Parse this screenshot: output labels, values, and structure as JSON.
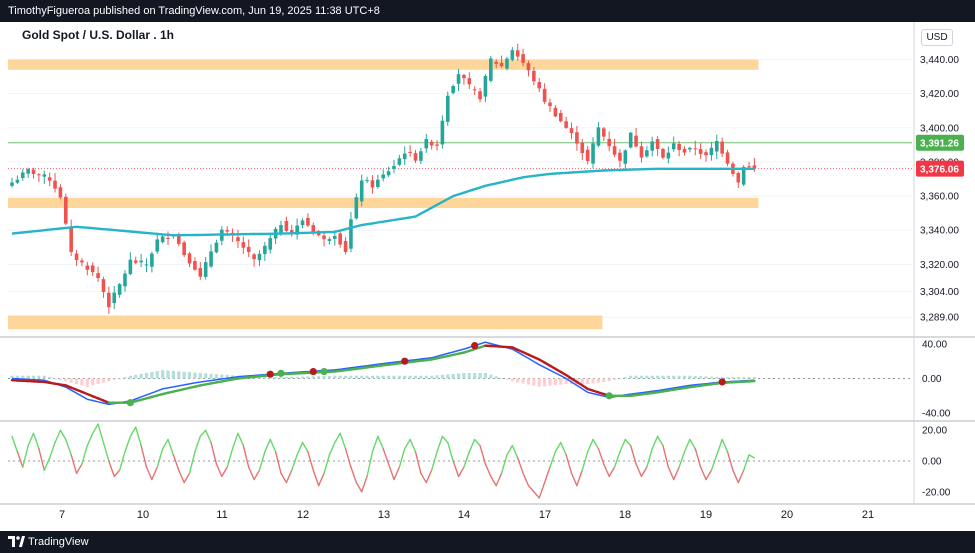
{
  "header": {
    "publish_line": "TimothyFigueroa published on TradingView.com, Jun 19, 2025 11:38 UTC+8"
  },
  "footer": {
    "brand": "TradingView"
  },
  "chart_title": "Gold Spot / U.S. Dollar . 1h",
  "currency_label": "USD",
  "colors": {
    "bull": "#26a69a",
    "bear": "#ef5350",
    "ema": "#26b5c6",
    "zone": "#ffd699",
    "macd_line": "#2962ff",
    "macd_signal_up": "#4caf50",
    "macd_signal_down": "#b71c1c",
    "osc_up": "#66d86a",
    "osc_down": "#e57373",
    "last_price_bg": "#f23645",
    "green_level_bg": "#4caf50"
  },
  "chart_data": [
    {
      "type": "candlestick",
      "title": "Gold Spot / U.S. Dollar . 1h",
      "ylim": [
        3278,
        3462
      ],
      "x_ticks": [
        "7",
        "10",
        "11",
        "12",
        "13",
        "14",
        "17",
        "18",
        "19",
        "20",
        "21"
      ],
      "y_ticks": [
        "3,440.00",
        "3,420.00",
        "3,400.00",
        "3,380.00",
        "3,360.00",
        "3,340.00",
        "3,320.00",
        "3,304.00",
        "3,289.00"
      ],
      "current_price_label": "3,376.06",
      "current_price": 3376.06,
      "level_label": "3,391.26",
      "level_price": 3391.26,
      "zones": [
        {
          "low": 3434,
          "high": 3440,
          "x_from": 0,
          "x_to": 138
        },
        {
          "low": 3353,
          "high": 3359,
          "x_from": 0,
          "x_to": 138
        },
        {
          "low": 3282,
          "high": 3290,
          "x_from": 0,
          "x_to": 109
        }
      ],
      "close_waypoints": [
        [
          0,
          3368
        ],
        [
          3,
          3375
        ],
        [
          7,
          3370
        ],
        [
          9,
          3360
        ],
        [
          11,
          3326
        ],
        [
          14,
          3318
        ],
        [
          16,
          3312
        ],
        [
          18,
          3296
        ],
        [
          20,
          3308
        ],
        [
          22,
          3322
        ],
        [
          25,
          3320
        ],
        [
          27,
          3334
        ],
        [
          30,
          3338
        ],
        [
          32,
          3326
        ],
        [
          34,
          3318
        ],
        [
          35,
          3312
        ],
        [
          37,
          3328
        ],
        [
          39,
          3340
        ],
        [
          41,
          3336
        ],
        [
          43,
          3330
        ],
        [
          45,
          3322
        ],
        [
          47,
          3330
        ],
        [
          50,
          3344
        ],
        [
          52,
          3338
        ],
        [
          54,
          3346
        ],
        [
          56,
          3340
        ],
        [
          58,
          3334
        ],
        [
          60,
          3338
        ],
        [
          62,
          3328
        ],
        [
          63,
          3346
        ],
        [
          65,
          3370
        ],
        [
          67,
          3366
        ],
        [
          69,
          3372
        ],
        [
          71,
          3378
        ],
        [
          73,
          3386
        ],
        [
          75,
          3382
        ],
        [
          77,
          3392
        ],
        [
          79,
          3390
        ],
        [
          81,
          3420
        ],
        [
          83,
          3432
        ],
        [
          85,
          3424
        ],
        [
          87,
          3418
        ],
        [
          89,
          3440
        ],
        [
          91,
          3436
        ],
        [
          93,
          3446
        ],
        [
          95,
          3438
        ],
        [
          97,
          3428
        ],
        [
          99,
          3416
        ],
        [
          101,
          3408
        ],
        [
          103,
          3400
        ],
        [
          105,
          3392
        ],
        [
          107,
          3380
        ],
        [
          109,
          3400
        ],
        [
          111,
          3390
        ],
        [
          113,
          3380
        ],
        [
          115,
          3396
        ],
        [
          117,
          3384
        ],
        [
          119,
          3392
        ],
        [
          121,
          3382
        ],
        [
          123,
          3390
        ],
        [
          125,
          3386
        ],
        [
          127,
          3388
        ],
        [
          129,
          3383
        ],
        [
          131,
          3392
        ],
        [
          133,
          3380
        ],
        [
          135,
          3368
        ],
        [
          136,
          3378
        ],
        [
          138,
          3376
        ]
      ],
      "ema_waypoints": [
        [
          0,
          3338
        ],
        [
          12,
          3342
        ],
        [
          30,
          3337
        ],
        [
          50,
          3338
        ],
        [
          60,
          3339
        ],
        [
          65,
          3343
        ],
        [
          75,
          3348
        ],
        [
          82,
          3360
        ],
        [
          88,
          3366
        ],
        [
          95,
          3371
        ],
        [
          100,
          3373
        ],
        [
          110,
          3375
        ],
        [
          120,
          3376
        ],
        [
          130,
          3376
        ],
        [
          138,
          3376
        ]
      ]
    },
    {
      "type": "line",
      "name": "macd_panel",
      "ylim": [
        -48,
        48
      ],
      "y_ticks": [
        "40.00",
        "0.00",
        "-40.00"
      ],
      "macd_waypoints": [
        [
          0,
          0
        ],
        [
          6,
          -2
        ],
        [
          10,
          -10
        ],
        [
          14,
          -24
        ],
        [
          18,
          -30
        ],
        [
          22,
          -26
        ],
        [
          28,
          -12
        ],
        [
          35,
          -4
        ],
        [
          42,
          2
        ],
        [
          50,
          6
        ],
        [
          60,
          10
        ],
        [
          70,
          18
        ],
        [
          78,
          24
        ],
        [
          84,
          34
        ],
        [
          88,
          42
        ],
        [
          93,
          34
        ],
        [
          98,
          16
        ],
        [
          103,
          0
        ],
        [
          107,
          -16
        ],
        [
          111,
          -22
        ],
        [
          115,
          -18
        ],
        [
          120,
          -14
        ],
        [
          126,
          -8
        ],
        [
          132,
          -4
        ],
        [
          138,
          -2
        ]
      ],
      "signal_waypoints": [
        [
          0,
          -2
        ],
        [
          6,
          -4
        ],
        [
          10,
          -8
        ],
        [
          14,
          -18
        ],
        [
          18,
          -28
        ],
        [
          22,
          -28
        ],
        [
          28,
          -18
        ],
        [
          35,
          -8
        ],
        [
          42,
          0
        ],
        [
          50,
          5
        ],
        [
          60,
          8
        ],
        [
          70,
          16
        ],
        [
          78,
          22
        ],
        [
          84,
          30
        ],
        [
          88,
          38
        ],
        [
          93,
          36
        ],
        [
          98,
          22
        ],
        [
          103,
          4
        ],
        [
          107,
          -12
        ],
        [
          111,
          -20
        ],
        [
          115,
          -20
        ],
        [
          120,
          -16
        ],
        [
          126,
          -10
        ],
        [
          132,
          -5
        ],
        [
          138,
          -3
        ]
      ],
      "cross_dots": [
        {
          "x": 22,
          "value": -28,
          "kind": "up"
        },
        {
          "x": 48,
          "value": 5,
          "kind": "down"
        },
        {
          "x": 50,
          "value": 6,
          "kind": "up"
        },
        {
          "x": 56,
          "value": 8,
          "kind": "down"
        },
        {
          "x": 58,
          "value": 8,
          "kind": "up"
        },
        {
          "x": 73,
          "value": 20,
          "kind": "down"
        },
        {
          "x": 86,
          "value": 38,
          "kind": "down"
        },
        {
          "x": 111,
          "value": -20,
          "kind": "up"
        },
        {
          "x": 132,
          "value": -4,
          "kind": "down"
        }
      ]
    },
    {
      "type": "line",
      "name": "oscillator_panel",
      "ylim": [
        -26,
        26
      ],
      "y_ticks": [
        "20.00",
        "0.00",
        "-20.00"
      ],
      "values": [
        16,
        6,
        -4,
        10,
        18,
        8,
        -6,
        2,
        12,
        20,
        14,
        4,
        -8,
        -2,
        10,
        18,
        24,
        12,
        0,
        -10,
        -6,
        6,
        16,
        22,
        10,
        -4,
        -12,
        -4,
        8,
        14,
        4,
        -6,
        -14,
        -8,
        6,
        16,
        20,
        12,
        -2,
        -10,
        -4,
        8,
        18,
        10,
        -4,
        -12,
        -6,
        6,
        14,
        6,
        -8,
        -14,
        -6,
        4,
        12,
        6,
        -6,
        -16,
        -8,
        4,
        12,
        18,
        8,
        -4,
        -14,
        -20,
        -10,
        6,
        16,
        8,
        -2,
        -12,
        -4,
        8,
        14,
        6,
        -8,
        -14,
        -6,
        6,
        16,
        12,
        0,
        -10,
        -4,
        6,
        14,
        10,
        -2,
        -10,
        -16,
        -8,
        4,
        10,
        2,
        -8,
        -16,
        -20,
        -24,
        -14,
        -4,
        6,
        12,
        4,
        -8,
        -16,
        -6,
        6,
        14,
        8,
        -2,
        -10,
        -4,
        6,
        14,
        10,
        -2,
        -10,
        -4,
        8,
        16,
        10,
        -4,
        -12,
        -4,
        6,
        14,
        8,
        -4,
        -12,
        -6,
        4,
        14,
        6,
        -6,
        -14,
        -6,
        4,
        2
      ]
    }
  ]
}
